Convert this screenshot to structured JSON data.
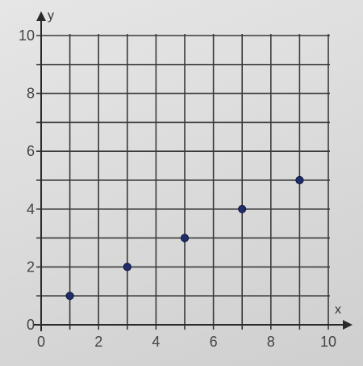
{
  "chart_data": {
    "type": "scatter",
    "title": "",
    "xlabel": "x",
    "ylabel": "y",
    "xlim": [
      0,
      10
    ],
    "ylim": [
      0,
      10
    ],
    "x_ticks": [
      0,
      2,
      4,
      6,
      8,
      10
    ],
    "y_ticks": [
      0,
      2,
      4,
      6,
      8,
      10
    ],
    "grid": true,
    "grid_step": 1,
    "points": [
      {
        "x": 1,
        "y": 1
      },
      {
        "x": 3,
        "y": 2
      },
      {
        "x": 5,
        "y": 3
      },
      {
        "x": 7,
        "y": 4
      },
      {
        "x": 9,
        "y": 5
      }
    ],
    "colors": {
      "point": "#1f2d6b",
      "grid": "#3a3a3a",
      "axis": "#2a2a2a",
      "label": "#444444"
    }
  }
}
